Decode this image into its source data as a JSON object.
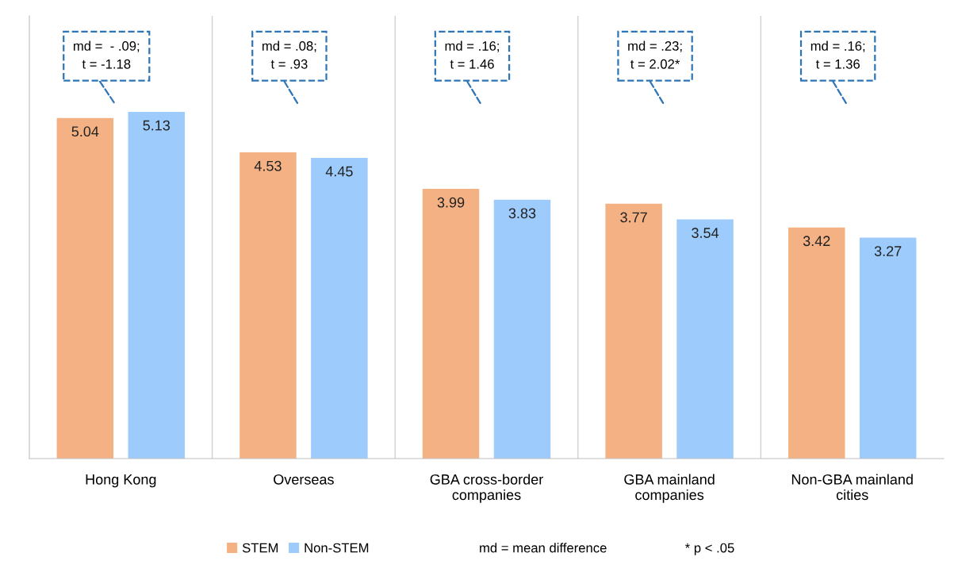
{
  "chart_data": {
    "type": "bar",
    "categories": [
      "Hong Kong",
      "Overseas",
      "GBA cross-border\ncompanies",
      "GBA mainland\ncompanies",
      "Non-GBA mainland\ncities"
    ],
    "series": [
      {
        "name": "STEM",
        "color": "#f4b183",
        "values": [
          5.04,
          4.53,
          3.99,
          3.77,
          3.42
        ]
      },
      {
        "name": "Non-STEM",
        "color": "#9dcbfb",
        "values": [
          5.13,
          4.45,
          3.83,
          3.54,
          3.27
        ]
      }
    ],
    "ylim": [
      0,
      6.55
    ],
    "data_labels": true,
    "grid": "x",
    "legend": "bottom",
    "annotations": [
      "md =  - .09;\nt = -1.18",
      "md = .08;\nt = .93",
      "md = .16;\nt = 1.46",
      "md = .23;\nt = 2.02*",
      "md = .16;\nt = 1.36",
      "md = mean difference",
      "* p < .05"
    ]
  }
}
